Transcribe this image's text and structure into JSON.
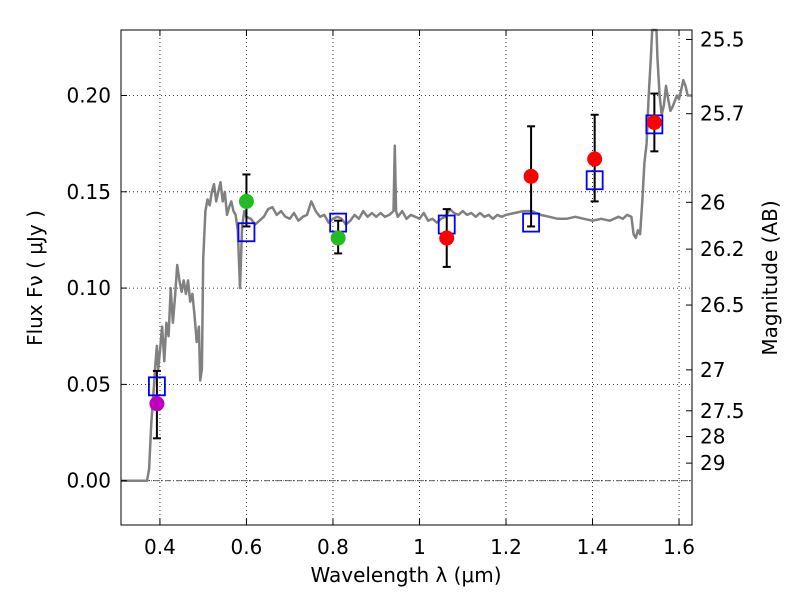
{
  "chart_data": {
    "type": "scatter",
    "xlabel": "Wavelength  λ (μm)",
    "ylabel": "Flux  Fν  ( μJy )",
    "y2label": "Magnitude (AB)",
    "xlim": [
      0.31,
      1.63
    ],
    "ylim": [
      -0.023,
      0.234
    ],
    "grid": true,
    "x_ticks": [
      0.4,
      0.6,
      0.8,
      1.0,
      1.2,
      1.4,
      1.6
    ],
    "x_tick_labels": [
      "0.4",
      "0.6",
      "0.8",
      "1",
      "1.2",
      "1.4",
      "1.6"
    ],
    "y_ticks": [
      0.0,
      0.05,
      0.1,
      0.15,
      0.2
    ],
    "y_tick_labels": [
      "0.00",
      "0.05",
      "0.10",
      "0.15",
      "0.20"
    ],
    "mag_ticks": [
      {
        "value": 25.5,
        "label": "25.5"
      },
      {
        "value": 25.7,
        "label": "25.7"
      },
      {
        "value": 26.0,
        "label": "26"
      },
      {
        "value": 26.2,
        "label": "26.2"
      },
      {
        "value": 26.5,
        "label": "26.5"
      },
      {
        "value": 27.0,
        "label": "27"
      },
      {
        "value": 27.5,
        "label": "27.5"
      },
      {
        "value": 28.0,
        "label": "28"
      },
      {
        "value": 29.0,
        "label": "29"
      }
    ],
    "colors": {
      "model": "#808080",
      "model_points": "#0000ff",
      "errorbar": "#000000",
      "zero_line": "#555555"
    },
    "model_spectrum": [
      [
        0.31,
        0.0
      ],
      [
        0.37,
        0.0
      ],
      [
        0.375,
        0.006
      ],
      [
        0.38,
        0.03
      ],
      [
        0.385,
        0.045
      ],
      [
        0.39,
        0.062
      ],
      [
        0.393,
        0.07
      ],
      [
        0.396,
        0.058
      ],
      [
        0.4,
        0.067
      ],
      [
        0.405,
        0.08
      ],
      [
        0.41,
        0.062
      ],
      [
        0.415,
        0.082
      ],
      [
        0.42,
        0.075
      ],
      [
        0.425,
        0.1
      ],
      [
        0.43,
        0.082
      ],
      [
        0.435,
        0.096
      ],
      [
        0.44,
        0.112
      ],
      [
        0.445,
        0.104
      ],
      [
        0.45,
        0.098
      ],
      [
        0.455,
        0.104
      ],
      [
        0.46,
        0.097
      ],
      [
        0.465,
        0.104
      ],
      [
        0.47,
        0.093
      ],
      [
        0.475,
        0.097
      ],
      [
        0.48,
        0.086
      ],
      [
        0.485,
        0.072
      ],
      [
        0.49,
        0.08
      ],
      [
        0.493,
        0.052
      ],
      [
        0.497,
        0.058
      ],
      [
        0.5,
        0.115
      ],
      [
        0.505,
        0.14
      ],
      [
        0.51,
        0.146
      ],
      [
        0.515,
        0.143
      ],
      [
        0.52,
        0.15
      ],
      [
        0.525,
        0.154
      ],
      [
        0.53,
        0.145
      ],
      [
        0.535,
        0.15
      ],
      [
        0.54,
        0.155
      ],
      [
        0.545,
        0.145
      ],
      [
        0.55,
        0.15
      ],
      [
        0.555,
        0.138
      ],
      [
        0.56,
        0.142
      ],
      [
        0.565,
        0.145
      ],
      [
        0.57,
        0.14
      ],
      [
        0.575,
        0.138
      ],
      [
        0.58,
        0.13
      ],
      [
        0.585,
        0.1
      ],
      [
        0.59,
        0.132
      ],
      [
        0.595,
        0.14
      ],
      [
        0.6,
        0.137
      ],
      [
        0.61,
        0.136
      ],
      [
        0.62,
        0.133
      ],
      [
        0.63,
        0.135
      ],
      [
        0.64,
        0.137
      ],
      [
        0.65,
        0.141
      ],
      [
        0.66,
        0.142
      ],
      [
        0.67,
        0.138
      ],
      [
        0.68,
        0.14
      ],
      [
        0.69,
        0.137
      ],
      [
        0.7,
        0.136
      ],
      [
        0.71,
        0.139
      ],
      [
        0.72,
        0.135
      ],
      [
        0.73,
        0.137
      ],
      [
        0.74,
        0.138
      ],
      [
        0.75,
        0.145
      ],
      [
        0.76,
        0.14
      ],
      [
        0.77,
        0.137
      ],
      [
        0.78,
        0.138
      ],
      [
        0.79,
        0.134
      ],
      [
        0.8,
        0.136
      ],
      [
        0.81,
        0.137
      ],
      [
        0.82,
        0.136
      ],
      [
        0.83,
        0.133
      ],
      [
        0.84,
        0.135
      ],
      [
        0.85,
        0.138
      ],
      [
        0.86,
        0.136
      ],
      [
        0.87,
        0.14
      ],
      [
        0.88,
        0.137
      ],
      [
        0.89,
        0.139
      ],
      [
        0.9,
        0.137
      ],
      [
        0.91,
        0.139
      ],
      [
        0.92,
        0.137
      ],
      [
        0.93,
        0.138
      ],
      [
        0.94,
        0.14
      ],
      [
        0.943,
        0.174
      ],
      [
        0.946,
        0.14
      ],
      [
        0.95,
        0.137
      ],
      [
        0.96,
        0.14
      ],
      [
        0.97,
        0.136
      ],
      [
        0.98,
        0.138
      ],
      [
        0.99,
        0.137
      ],
      [
        1.0,
        0.136
      ],
      [
        1.01,
        0.139
      ],
      [
        1.02,
        0.135
      ],
      [
        1.03,
        0.136
      ],
      [
        1.04,
        0.134
      ],
      [
        1.05,
        0.136
      ],
      [
        1.06,
        0.137
      ],
      [
        1.07,
        0.141
      ],
      [
        1.08,
        0.139
      ],
      [
        1.09,
        0.138
      ],
      [
        1.1,
        0.14
      ],
      [
        1.11,
        0.138
      ],
      [
        1.12,
        0.139
      ],
      [
        1.13,
        0.137
      ],
      [
        1.14,
        0.139
      ],
      [
        1.15,
        0.137
      ],
      [
        1.16,
        0.138
      ],
      [
        1.17,
        0.136
      ],
      [
        1.18,
        0.138
      ],
      [
        1.19,
        0.137
      ],
      [
        1.2,
        0.138
      ],
      [
        1.22,
        0.139
      ],
      [
        1.24,
        0.14
      ],
      [
        1.26,
        0.14
      ],
      [
        1.28,
        0.138
      ],
      [
        1.3,
        0.137
      ],
      [
        1.32,
        0.136
      ],
      [
        1.34,
        0.136
      ],
      [
        1.36,
        0.137
      ],
      [
        1.38,
        0.136
      ],
      [
        1.4,
        0.135
      ],
      [
        1.42,
        0.136
      ],
      [
        1.44,
        0.135
      ],
      [
        1.46,
        0.137
      ],
      [
        1.47,
        0.136
      ],
      [
        1.48,
        0.138
      ],
      [
        1.49,
        0.137
      ],
      [
        1.495,
        0.128
      ],
      [
        1.5,
        0.126
      ],
      [
        1.505,
        0.13
      ],
      [
        1.51,
        0.128
      ],
      [
        1.515,
        0.145
      ],
      [
        1.52,
        0.165
      ],
      [
        1.525,
        0.175
      ],
      [
        1.53,
        0.2
      ],
      [
        1.535,
        0.22
      ],
      [
        1.538,
        0.234
      ],
      [
        1.548,
        0.234
      ],
      [
        1.55,
        0.22
      ],
      [
        1.555,
        0.2
      ],
      [
        1.56,
        0.19
      ],
      [
        1.565,
        0.195
      ],
      [
        1.57,
        0.205
      ],
      [
        1.575,
        0.198
      ],
      [
        1.58,
        0.192
      ],
      [
        1.585,
        0.194
      ],
      [
        1.59,
        0.197
      ],
      [
        1.595,
        0.2
      ],
      [
        1.6,
        0.198
      ],
      [
        1.605,
        0.203
      ],
      [
        1.61,
        0.208
      ],
      [
        1.615,
        0.205
      ],
      [
        1.62,
        0.2
      ],
      [
        1.63,
        0.2
      ]
    ],
    "model_points": [
      {
        "x": 0.393,
        "y": 0.049
      },
      {
        "x": 0.6,
        "y": 0.129
      },
      {
        "x": 0.812,
        "y": 0.134
      },
      {
        "x": 1.063,
        "y": 0.133
      },
      {
        "x": 1.258,
        "y": 0.134
      },
      {
        "x": 1.405,
        "y": 0.156
      },
      {
        "x": 1.543,
        "y": 0.185
      }
    ],
    "observed_points": [
      {
        "x": 0.393,
        "y": 0.04,
        "err_low": 0.022,
        "err_high": 0.057,
        "color": "#c000c0"
      },
      {
        "x": 0.6,
        "y": 0.145,
        "err_low": 0.132,
        "err_high": 0.159,
        "color": "#22bb22"
      },
      {
        "x": 0.812,
        "y": 0.126,
        "err_low": 0.118,
        "err_high": 0.135,
        "color": "#22bb22"
      },
      {
        "x": 1.063,
        "y": 0.126,
        "err_low": 0.111,
        "err_high": 0.141,
        "color": "#ff0000"
      },
      {
        "x": 1.258,
        "y": 0.158,
        "err_low": 0.132,
        "err_high": 0.184,
        "color": "#ff0000"
      },
      {
        "x": 1.405,
        "y": 0.167,
        "err_low": 0.145,
        "err_high": 0.19,
        "color": "#ff0000"
      },
      {
        "x": 1.543,
        "y": 0.186,
        "err_low": 0.171,
        "err_high": 0.201,
        "color": "#ff0000"
      }
    ]
  }
}
